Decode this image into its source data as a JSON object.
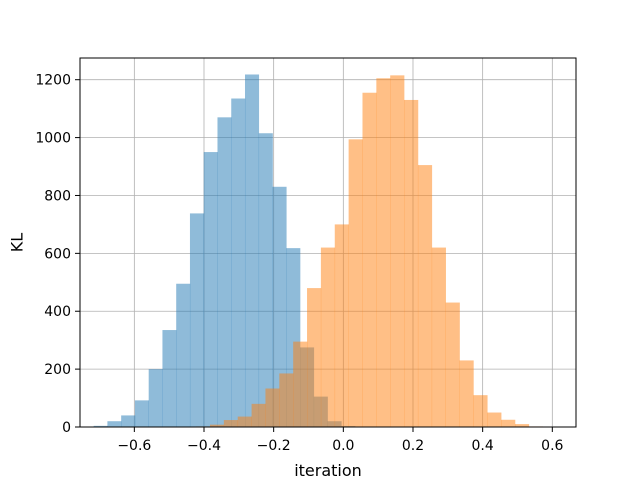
{
  "chart_data": {
    "type": "histogram",
    "xlabel": "iteration",
    "ylabel": "KL",
    "xlim": [
      -0.756,
      0.668
    ],
    "ylim": [
      0,
      1275
    ],
    "xticks": [
      -0.6,
      -0.4,
      -0.2,
      0.0,
      0.2,
      0.4,
      0.6
    ],
    "xtick_labels": [
      "−0.6",
      "−0.4",
      "−0.2",
      "0.0",
      "0.2",
      "0.4",
      "0.6"
    ],
    "yticks": [
      0,
      200,
      400,
      600,
      800,
      1000,
      1200
    ],
    "ytick_labels": [
      "0",
      "200",
      "400",
      "600",
      "800",
      "1000",
      "1200"
    ],
    "grid": true,
    "opacity": 0.5,
    "series": [
      {
        "color": "#1f77b4",
        "bin_start": -0.7168,
        "bin_width": 0.0395,
        "counts": [
          4,
          20,
          40,
          92,
          200,
          335,
          495,
          738,
          950,
          1070,
          1135,
          1218,
          1015,
          830,
          618,
          275,
          105,
          20,
          3
        ]
      },
      {
        "color": "#ff7f0e",
        "bin_start": -0.4226,
        "bin_width": 0.0398,
        "counts": [
          2,
          8,
          24,
          36,
          80,
          133,
          185,
          295,
          480,
          620,
          700,
          994,
          1155,
          1205,
          1215,
          1130,
          905,
          620,
          430,
          230,
          110,
          50,
          25,
          10,
          2
        ]
      }
    ]
  }
}
